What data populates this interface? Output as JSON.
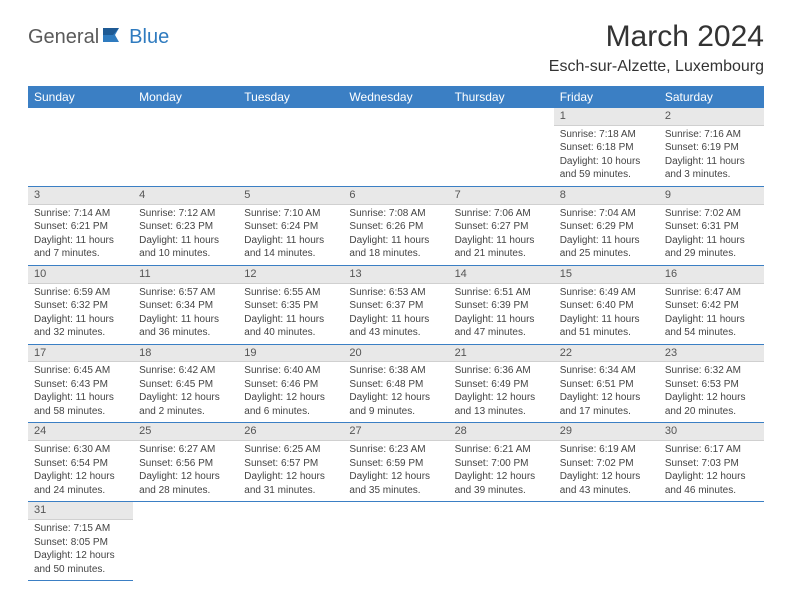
{
  "logo": {
    "part1": "General",
    "part2": "Blue"
  },
  "title": "March 2024",
  "location": "Esch-sur-Alzette, Luxembourg",
  "colors": {
    "header_bg": "#3b7fc4",
    "header_fg": "#ffffff",
    "daynum_bg": "#e8e8e8",
    "border": "#3b7fc4",
    "logo_gray": "#5a5a5a",
    "logo_blue": "#2f7bbf"
  },
  "weekdays": [
    "Sunday",
    "Monday",
    "Tuesday",
    "Wednesday",
    "Thursday",
    "Friday",
    "Saturday"
  ],
  "weeks": [
    [
      null,
      null,
      null,
      null,
      null,
      {
        "n": "1",
        "sr": "Sunrise: 7:18 AM",
        "ss": "Sunset: 6:18 PM",
        "dl": "Daylight: 10 hours and 59 minutes."
      },
      {
        "n": "2",
        "sr": "Sunrise: 7:16 AM",
        "ss": "Sunset: 6:19 PM",
        "dl": "Daylight: 11 hours and 3 minutes."
      }
    ],
    [
      {
        "n": "3",
        "sr": "Sunrise: 7:14 AM",
        "ss": "Sunset: 6:21 PM",
        "dl": "Daylight: 11 hours and 7 minutes."
      },
      {
        "n": "4",
        "sr": "Sunrise: 7:12 AM",
        "ss": "Sunset: 6:23 PM",
        "dl": "Daylight: 11 hours and 10 minutes."
      },
      {
        "n": "5",
        "sr": "Sunrise: 7:10 AM",
        "ss": "Sunset: 6:24 PM",
        "dl": "Daylight: 11 hours and 14 minutes."
      },
      {
        "n": "6",
        "sr": "Sunrise: 7:08 AM",
        "ss": "Sunset: 6:26 PM",
        "dl": "Daylight: 11 hours and 18 minutes."
      },
      {
        "n": "7",
        "sr": "Sunrise: 7:06 AM",
        "ss": "Sunset: 6:27 PM",
        "dl": "Daylight: 11 hours and 21 minutes."
      },
      {
        "n": "8",
        "sr": "Sunrise: 7:04 AM",
        "ss": "Sunset: 6:29 PM",
        "dl": "Daylight: 11 hours and 25 minutes."
      },
      {
        "n": "9",
        "sr": "Sunrise: 7:02 AM",
        "ss": "Sunset: 6:31 PM",
        "dl": "Daylight: 11 hours and 29 minutes."
      }
    ],
    [
      {
        "n": "10",
        "sr": "Sunrise: 6:59 AM",
        "ss": "Sunset: 6:32 PM",
        "dl": "Daylight: 11 hours and 32 minutes."
      },
      {
        "n": "11",
        "sr": "Sunrise: 6:57 AM",
        "ss": "Sunset: 6:34 PM",
        "dl": "Daylight: 11 hours and 36 minutes."
      },
      {
        "n": "12",
        "sr": "Sunrise: 6:55 AM",
        "ss": "Sunset: 6:35 PM",
        "dl": "Daylight: 11 hours and 40 minutes."
      },
      {
        "n": "13",
        "sr": "Sunrise: 6:53 AM",
        "ss": "Sunset: 6:37 PM",
        "dl": "Daylight: 11 hours and 43 minutes."
      },
      {
        "n": "14",
        "sr": "Sunrise: 6:51 AM",
        "ss": "Sunset: 6:39 PM",
        "dl": "Daylight: 11 hours and 47 minutes."
      },
      {
        "n": "15",
        "sr": "Sunrise: 6:49 AM",
        "ss": "Sunset: 6:40 PM",
        "dl": "Daylight: 11 hours and 51 minutes."
      },
      {
        "n": "16",
        "sr": "Sunrise: 6:47 AM",
        "ss": "Sunset: 6:42 PM",
        "dl": "Daylight: 11 hours and 54 minutes."
      }
    ],
    [
      {
        "n": "17",
        "sr": "Sunrise: 6:45 AM",
        "ss": "Sunset: 6:43 PM",
        "dl": "Daylight: 11 hours and 58 minutes."
      },
      {
        "n": "18",
        "sr": "Sunrise: 6:42 AM",
        "ss": "Sunset: 6:45 PM",
        "dl": "Daylight: 12 hours and 2 minutes."
      },
      {
        "n": "19",
        "sr": "Sunrise: 6:40 AM",
        "ss": "Sunset: 6:46 PM",
        "dl": "Daylight: 12 hours and 6 minutes."
      },
      {
        "n": "20",
        "sr": "Sunrise: 6:38 AM",
        "ss": "Sunset: 6:48 PM",
        "dl": "Daylight: 12 hours and 9 minutes."
      },
      {
        "n": "21",
        "sr": "Sunrise: 6:36 AM",
        "ss": "Sunset: 6:49 PM",
        "dl": "Daylight: 12 hours and 13 minutes."
      },
      {
        "n": "22",
        "sr": "Sunrise: 6:34 AM",
        "ss": "Sunset: 6:51 PM",
        "dl": "Daylight: 12 hours and 17 minutes."
      },
      {
        "n": "23",
        "sr": "Sunrise: 6:32 AM",
        "ss": "Sunset: 6:53 PM",
        "dl": "Daylight: 12 hours and 20 minutes."
      }
    ],
    [
      {
        "n": "24",
        "sr": "Sunrise: 6:30 AM",
        "ss": "Sunset: 6:54 PM",
        "dl": "Daylight: 12 hours and 24 minutes."
      },
      {
        "n": "25",
        "sr": "Sunrise: 6:27 AM",
        "ss": "Sunset: 6:56 PM",
        "dl": "Daylight: 12 hours and 28 minutes."
      },
      {
        "n": "26",
        "sr": "Sunrise: 6:25 AM",
        "ss": "Sunset: 6:57 PM",
        "dl": "Daylight: 12 hours and 31 minutes."
      },
      {
        "n": "27",
        "sr": "Sunrise: 6:23 AM",
        "ss": "Sunset: 6:59 PM",
        "dl": "Daylight: 12 hours and 35 minutes."
      },
      {
        "n": "28",
        "sr": "Sunrise: 6:21 AM",
        "ss": "Sunset: 7:00 PM",
        "dl": "Daylight: 12 hours and 39 minutes."
      },
      {
        "n": "29",
        "sr": "Sunrise: 6:19 AM",
        "ss": "Sunset: 7:02 PM",
        "dl": "Daylight: 12 hours and 43 minutes."
      },
      {
        "n": "30",
        "sr": "Sunrise: 6:17 AM",
        "ss": "Sunset: 7:03 PM",
        "dl": "Daylight: 12 hours and 46 minutes."
      }
    ],
    [
      {
        "n": "31",
        "sr": "Sunrise: 7:15 AM",
        "ss": "Sunset: 8:05 PM",
        "dl": "Daylight: 12 hours and 50 minutes."
      },
      null,
      null,
      null,
      null,
      null,
      null
    ]
  ]
}
